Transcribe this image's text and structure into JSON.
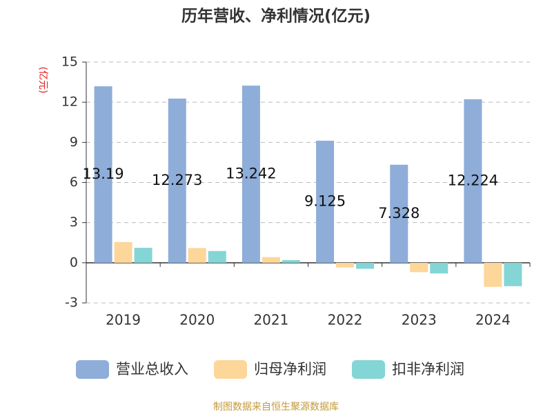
{
  "chart_data": {
    "type": "bar",
    "title": "历年营收、净利情况(亿元)",
    "y_label": "(亿元)",
    "categories": [
      "2019",
      "2020",
      "2021",
      "2022",
      "2023",
      "2024"
    ],
    "series": [
      {
        "name": "营业总收入",
        "color": "#8eadd9",
        "values": [
          13.19,
          12.273,
          13.242,
          9.125,
          7.328,
          12.224
        ],
        "data_labels": true
      },
      {
        "name": "归母净利润",
        "color": "#fdd699",
        "values": [
          1.55,
          1.1,
          0.42,
          -0.35,
          -0.7,
          -1.8
        ]
      },
      {
        "name": "扣非净利润",
        "color": "#84d5d6",
        "values": [
          1.12,
          0.88,
          0.2,
          -0.45,
          -0.8,
          -1.75
        ]
      }
    ],
    "ylim": [
      -3,
      15
    ],
    "yticks": [
      -3,
      0,
      3,
      6,
      9,
      12,
      15
    ],
    "grid": true,
    "source": "制图数据来自恒生聚源数据库"
  }
}
